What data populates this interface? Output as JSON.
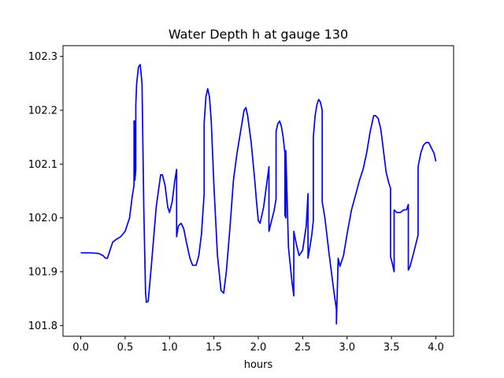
{
  "chart_data": {
    "type": "line",
    "title": "Water Depth h at gauge 130",
    "xlabel": "hours",
    "ylabel": "",
    "xlim": [
      -0.2,
      4.2
    ],
    "ylim": [
      101.78,
      102.32
    ],
    "grid": false,
    "xticks": [
      0.0,
      0.5,
      1.0,
      1.5,
      2.0,
      2.5,
      3.0,
      3.5,
      4.0
    ],
    "xtick_labels": [
      "0.0",
      "0.5",
      "1.0",
      "1.5",
      "2.0",
      "2.5",
      "3.0",
      "3.5",
      "4.0"
    ],
    "yticks": [
      101.8,
      101.9,
      102.0,
      102.1,
      102.2,
      102.3
    ],
    "ytick_labels": [
      "101.8",
      "101.9",
      "102.0",
      "102.1",
      "102.2",
      "102.3"
    ],
    "series": [
      {
        "color": "#0000ff",
        "x": [
          0.0,
          0.1,
          0.2,
          0.25,
          0.28,
          0.3,
          0.33,
          0.36,
          0.4,
          0.45,
          0.5,
          0.55,
          0.58,
          0.6,
          0.6,
          0.61,
          0.61,
          0.62,
          0.62,
          0.63,
          0.65,
          0.67,
          0.69,
          0.71,
          0.73,
          0.74,
          0.76,
          0.8,
          0.85,
          0.9,
          0.92,
          0.95,
          0.98,
          1.0,
          1.03,
          1.06,
          1.08,
          1.08,
          1.1,
          1.13,
          1.16,
          1.19,
          1.23,
          1.26,
          1.3,
          1.33,
          1.36,
          1.39,
          1.39,
          1.41,
          1.43,
          1.45,
          1.47,
          1.5,
          1.54,
          1.58,
          1.61,
          1.64,
          1.68,
          1.72,
          1.76,
          1.8,
          1.84,
          1.86,
          1.88,
          1.92,
          1.96,
          1.98,
          2.0,
          2.02,
          2.06,
          2.1,
          2.12,
          2.12,
          2.15,
          2.18,
          2.2,
          2.2,
          2.22,
          2.24,
          2.26,
          2.28,
          2.3,
          2.3,
          2.31,
          2.31,
          2.34,
          2.38,
          2.4,
          2.4,
          2.43,
          2.46,
          2.5,
          2.54,
          2.56,
          2.56,
          2.6,
          2.62,
          2.62,
          2.64,
          2.66,
          2.68,
          2.7,
          2.72,
          2.72,
          2.75,
          2.8,
          2.85,
          2.88,
          2.88,
          2.9,
          2.92,
          2.96,
          3.0,
          3.05,
          3.1,
          3.14,
          3.18,
          3.22,
          3.26,
          3.3,
          3.32,
          3.35,
          3.38,
          3.41,
          3.44,
          3.47,
          3.49,
          3.49,
          3.51,
          3.53,
          3.53,
          3.56,
          3.6,
          3.64,
          3.67,
          3.69,
          3.69,
          3.71,
          3.75,
          3.8,
          3.8,
          3.83,
          3.86,
          3.89,
          3.92,
          3.95,
          3.98,
          4.0
        ],
        "y": [
          101.935,
          101.935,
          101.934,
          101.93,
          101.925,
          101.925,
          101.94,
          101.955,
          101.96,
          101.965,
          101.975,
          102.0,
          102.04,
          102.06,
          102.18,
          102.18,
          102.07,
          102.09,
          102.21,
          102.25,
          102.28,
          102.285,
          102.25,
          102.02,
          101.86,
          101.843,
          101.845,
          101.92,
          102.02,
          102.08,
          102.08,
          102.06,
          102.02,
          102.01,
          102.03,
          102.07,
          102.09,
          101.965,
          101.985,
          101.99,
          101.98,
          101.955,
          101.925,
          101.912,
          101.912,
          101.93,
          101.97,
          102.045,
          102.175,
          102.225,
          102.24,
          102.225,
          102.18,
          102.06,
          101.93,
          101.865,
          101.86,
          101.9,
          101.98,
          102.07,
          102.12,
          102.16,
          102.2,
          102.205,
          102.19,
          102.14,
          102.07,
          102.03,
          101.995,
          101.99,
          102.02,
          102.07,
          102.095,
          101.975,
          101.995,
          102.015,
          102.035,
          102.16,
          102.175,
          102.18,
          102.17,
          102.15,
          102.12,
          102.005,
          102.0,
          102.125,
          101.945,
          101.88,
          101.855,
          101.975,
          101.95,
          101.93,
          101.94,
          101.985,
          102.045,
          101.925,
          101.965,
          101.995,
          102.15,
          102.19,
          102.21,
          102.22,
          102.215,
          102.2,
          102.03,
          102.0,
          101.93,
          101.865,
          101.83,
          101.803,
          101.925,
          101.91,
          101.93,
          101.97,
          102.015,
          102.045,
          102.07,
          102.09,
          102.12,
          102.16,
          102.19,
          102.19,
          102.185,
          102.165,
          102.125,
          102.085,
          102.065,
          102.055,
          101.928,
          101.915,
          101.9,
          102.015,
          102.01,
          102.01,
          102.015,
          102.015,
          102.025,
          101.903,
          101.91,
          101.935,
          101.968,
          102.095,
          102.12,
          102.135,
          102.14,
          102.14,
          102.13,
          102.12,
          102.105
        ]
      }
    ]
  }
}
